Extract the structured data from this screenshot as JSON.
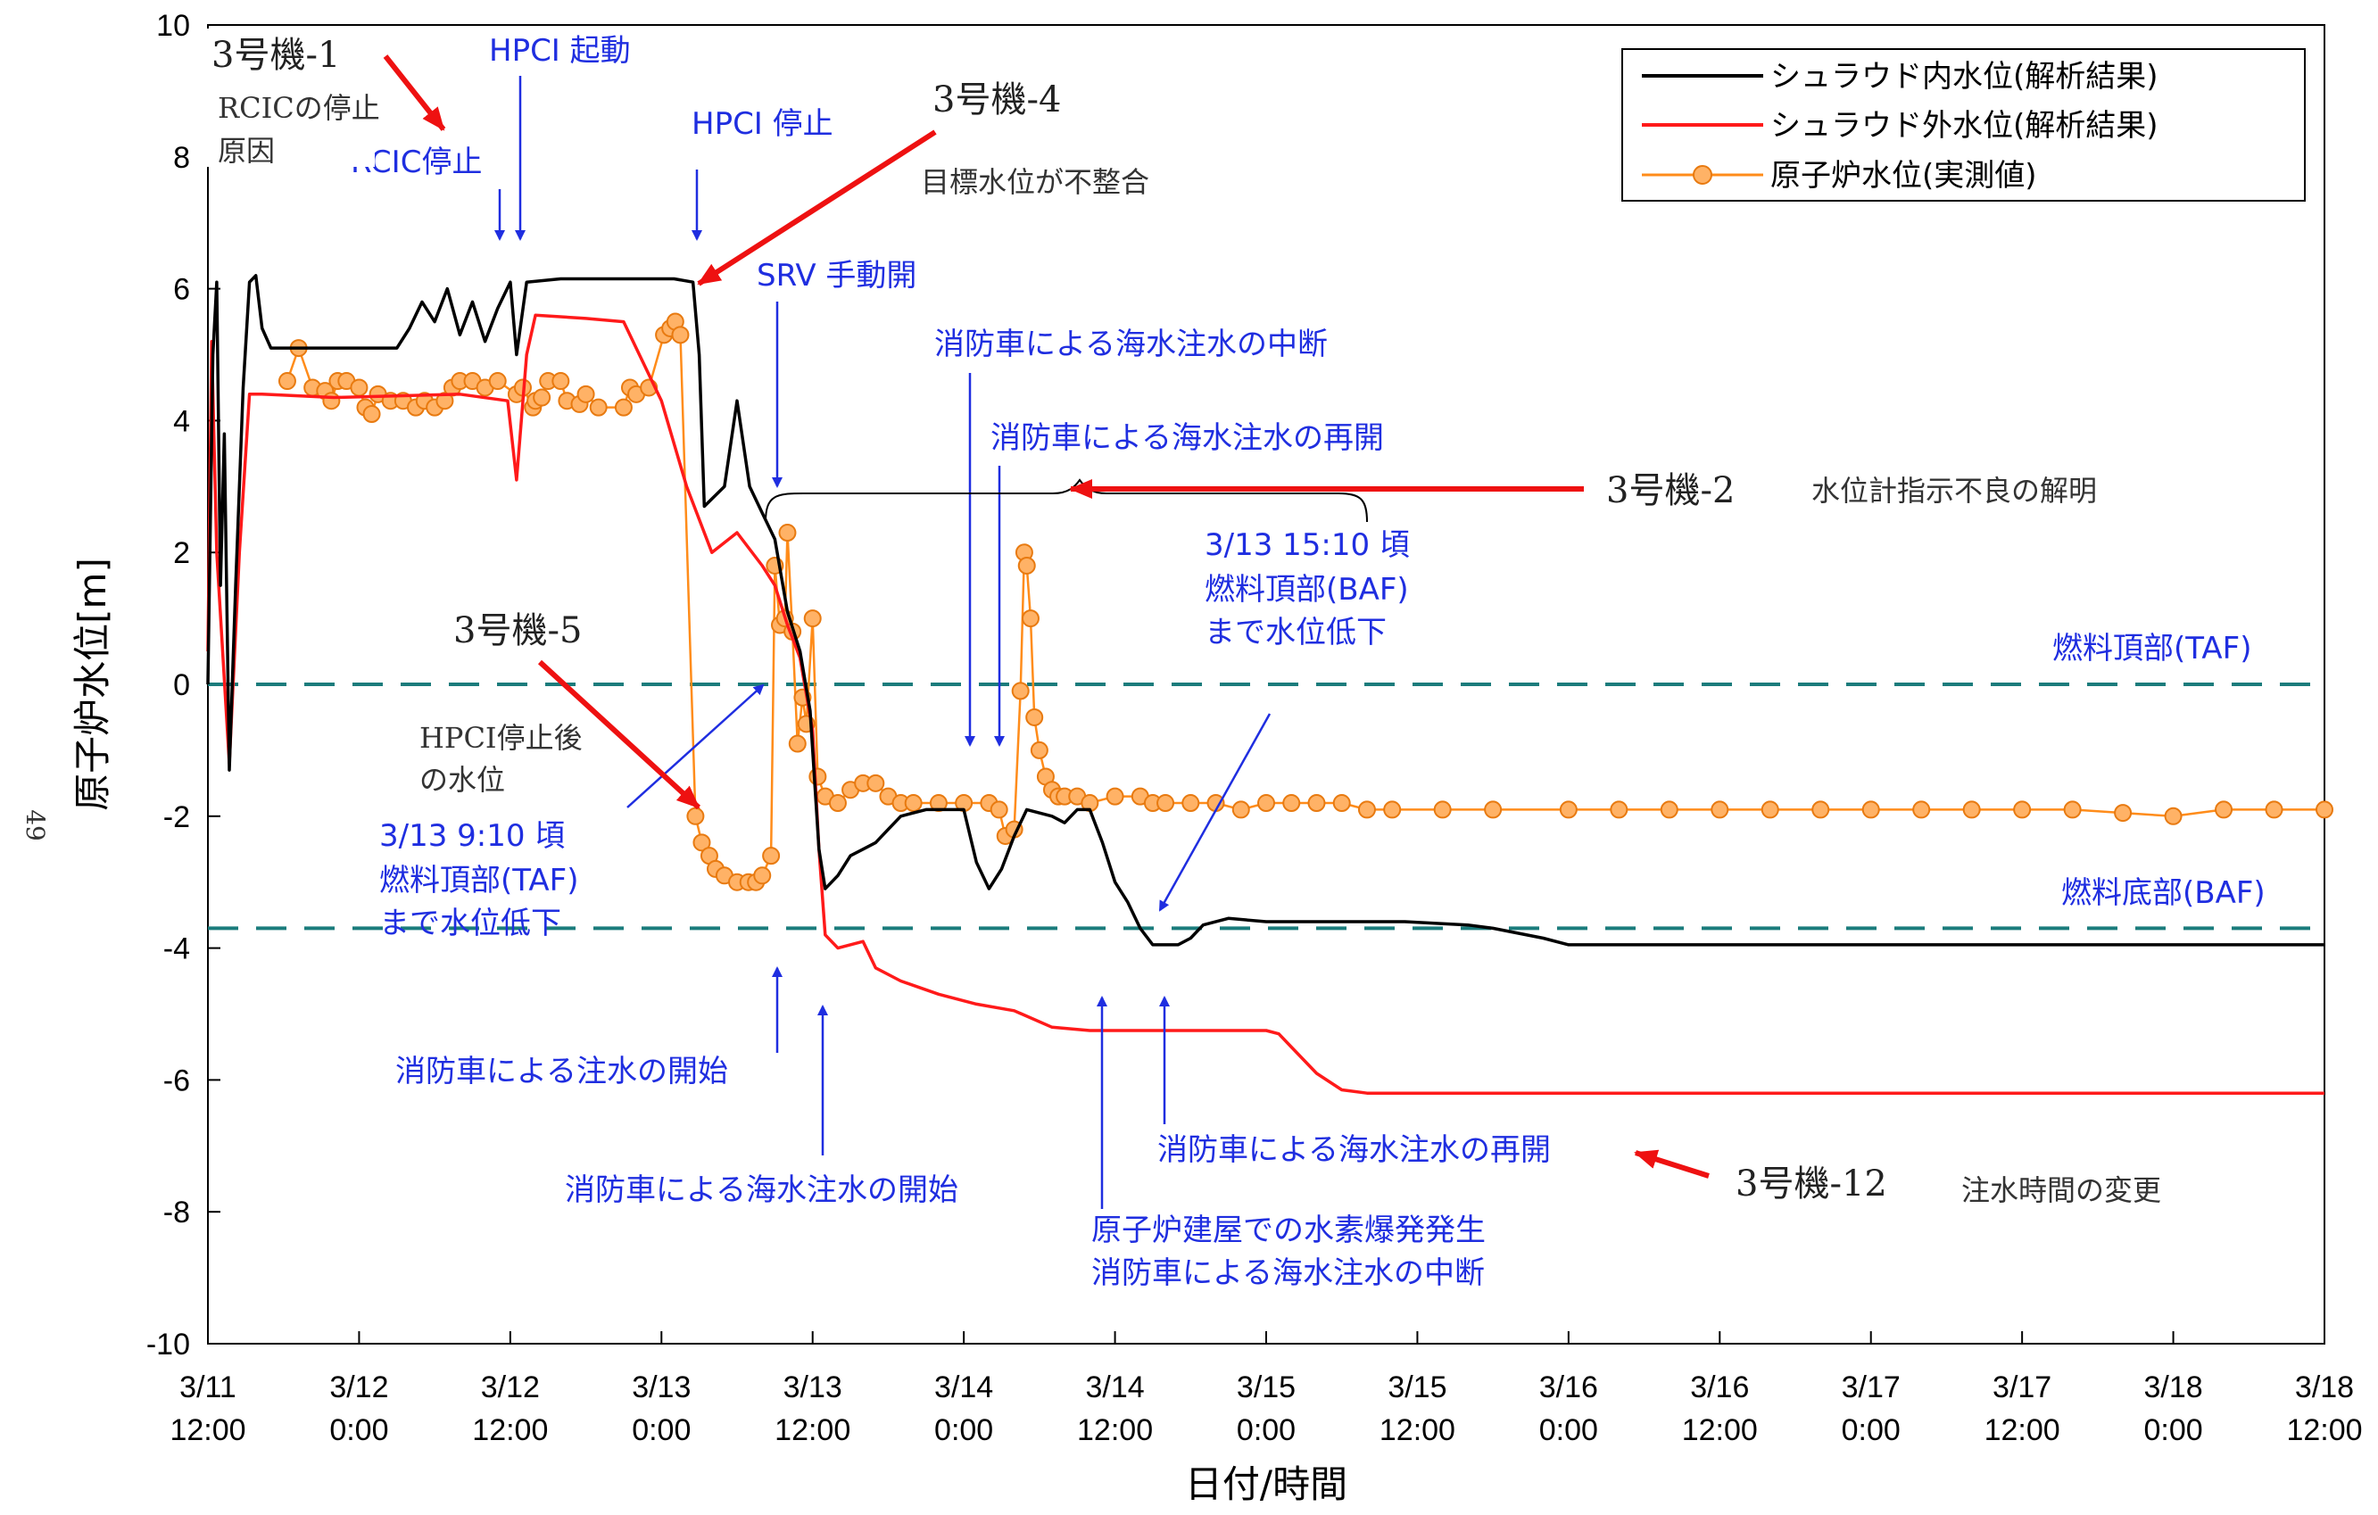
{
  "chart_data": {
    "type": "line",
    "title": "",
    "xlabel": "日付/時間",
    "ylabel": "原子炉水位[m]",
    "ylim": [
      -10,
      10
    ],
    "xlim": [
      0,
      168
    ],
    "grid": false,
    "legend_position": "top-right",
    "page_number": "49",
    "x_ticks": [
      {
        "t": 0,
        "line1": "3/11",
        "line2": "12:00"
      },
      {
        "t": 12,
        "line1": "3/12",
        "line2": "0:00"
      },
      {
        "t": 24,
        "line1": "3/12",
        "line2": "12:00"
      },
      {
        "t": 36,
        "line1": "3/13",
        "line2": "0:00"
      },
      {
        "t": 48,
        "line1": "3/13",
        "line2": "12:00"
      },
      {
        "t": 60,
        "line1": "3/14",
        "line2": "0:00"
      },
      {
        "t": 72,
        "line1": "3/14",
        "line2": "12:00"
      },
      {
        "t": 84,
        "line1": "3/15",
        "line2": "0:00"
      },
      {
        "t": 96,
        "line1": "3/15",
        "line2": "12:00"
      },
      {
        "t": 108,
        "line1": "3/16",
        "line2": "0:00"
      },
      {
        "t": 120,
        "line1": "3/16",
        "line2": "12:00"
      },
      {
        "t": 132,
        "line1": "3/17",
        "line2": "0:00"
      },
      {
        "t": 144,
        "line1": "3/17",
        "line2": "12:00"
      },
      {
        "t": 156,
        "line1": "3/18",
        "line2": "0:00"
      },
      {
        "t": 168,
        "line1": "3/18",
        "line2": "12:00"
      }
    ],
    "y_ticks": [
      10,
      8,
      6,
      4,
      2,
      0,
      -2,
      -4,
      -6,
      -8,
      -10
    ],
    "reference_lines": [
      {
        "y": 0,
        "label": "燃料頂部(TAF)",
        "color": "#1b7c7c"
      },
      {
        "y": -3.7,
        "label": "燃料底部(BAF)",
        "color": "#1b7c7c"
      }
    ],
    "series": [
      {
        "name": "シュラウド内水位(解析結果)",
        "color": "#000000",
        "style": "line",
        "points": [
          [
            0,
            0
          ],
          [
            0.4,
            5
          ],
          [
            0.7,
            6.1
          ],
          [
            1.0,
            1.5
          ],
          [
            1.3,
            3.8
          ],
          [
            1.7,
            -1.3
          ],
          [
            2.2,
            1.5
          ],
          [
            2.8,
            4.5
          ],
          [
            3.3,
            6.1
          ],
          [
            3.8,
            6.2
          ],
          [
            4.3,
            5.4
          ],
          [
            5,
            5.1
          ],
          [
            8,
            5.1
          ],
          [
            12,
            5.1
          ],
          [
            15,
            5.1
          ],
          [
            16,
            5.4
          ],
          [
            17,
            5.8
          ],
          [
            18,
            5.5
          ],
          [
            19,
            6.0
          ],
          [
            20,
            5.3
          ],
          [
            21,
            5.8
          ],
          [
            22,
            5.2
          ],
          [
            23,
            5.7
          ],
          [
            24,
            6.1
          ],
          [
            24.5,
            5.0
          ],
          [
            25.3,
            6.1
          ],
          [
            28,
            6.15
          ],
          [
            33,
            6.15
          ],
          [
            37,
            6.15
          ],
          [
            38.5,
            6.1
          ],
          [
            39,
            5.0
          ],
          [
            39.4,
            2.7
          ],
          [
            41,
            3.0
          ],
          [
            42,
            4.3
          ],
          [
            43,
            3.0
          ],
          [
            44,
            2.6
          ],
          [
            45,
            2.2
          ],
          [
            46,
            1.1
          ],
          [
            47,
            0.5
          ],
          [
            47.8,
            -0.4
          ],
          [
            48.5,
            -2.5
          ],
          [
            49,
            -3.1
          ],
          [
            50,
            -2.9
          ],
          [
            51,
            -2.6
          ],
          [
            52,
            -2.5
          ],
          [
            53,
            -2.4
          ],
          [
            54,
            -2.2
          ],
          [
            55,
            -2.0
          ],
          [
            57,
            -1.9
          ],
          [
            60,
            -1.9
          ],
          [
            61,
            -2.7
          ],
          [
            62,
            -3.1
          ],
          [
            63,
            -2.8
          ],
          [
            64,
            -2.3
          ],
          [
            65,
            -1.9
          ],
          [
            67,
            -2.0
          ],
          [
            68,
            -2.1
          ],
          [
            69,
            -1.9
          ],
          [
            70,
            -1.9
          ],
          [
            71,
            -2.4
          ],
          [
            72,
            -3.0
          ],
          [
            73,
            -3.3
          ],
          [
            74,
            -3.7
          ],
          [
            75,
            -3.95
          ],
          [
            77,
            -3.95
          ],
          [
            78,
            -3.85
          ],
          [
            79,
            -3.65
          ],
          [
            81,
            -3.55
          ],
          [
            84,
            -3.6
          ],
          [
            95,
            -3.6
          ],
          [
            100,
            -3.65
          ],
          [
            102,
            -3.7
          ],
          [
            106,
            -3.85
          ],
          [
            108,
            -3.95
          ],
          [
            120,
            -3.95
          ],
          [
            150,
            -3.95
          ],
          [
            168,
            -3.95
          ]
        ]
      },
      {
        "name": "シュラウド外水位(解析結果)",
        "color": "#ff1a1a",
        "style": "line",
        "points": [
          [
            0,
            0.5
          ],
          [
            0.3,
            5.2
          ],
          [
            0.7,
            2.0
          ],
          [
            1.7,
            -1.2
          ],
          [
            2.5,
            2.0
          ],
          [
            3.3,
            4.4
          ],
          [
            4.3,
            4.4
          ],
          [
            10,
            4.35
          ],
          [
            20,
            4.4
          ],
          [
            23.8,
            4.3
          ],
          [
            24.5,
            3.1
          ],
          [
            25.3,
            5.0
          ],
          [
            26,
            5.6
          ],
          [
            30,
            5.55
          ],
          [
            33,
            5.5
          ],
          [
            34,
            5.1
          ],
          [
            36,
            4.3
          ],
          [
            38,
            3.0
          ],
          [
            40,
            2.0
          ],
          [
            42,
            2.3
          ],
          [
            44,
            1.8
          ],
          [
            45,
            1.5
          ],
          [
            46,
            0.9
          ],
          [
            47,
            0.4
          ],
          [
            48,
            -0.7
          ],
          [
            48.5,
            -2.5
          ],
          [
            49,
            -3.8
          ],
          [
            50,
            -4.0
          ],
          [
            52,
            -3.9
          ],
          [
            53,
            -4.3
          ],
          [
            55,
            -4.5
          ],
          [
            58,
            -4.7
          ],
          [
            61,
            -4.85
          ],
          [
            64,
            -4.95
          ],
          [
            67,
            -5.2
          ],
          [
            70,
            -5.25
          ],
          [
            84,
            -5.25
          ],
          [
            85,
            -5.3
          ],
          [
            86,
            -5.5
          ],
          [
            88,
            -5.9
          ],
          [
            90,
            -6.15
          ],
          [
            92,
            -6.2
          ],
          [
            168,
            -6.2
          ]
        ]
      },
      {
        "name": "原子炉水位(実測値)",
        "color": "#ff8c1a",
        "style": "line+marker",
        "points": [
          [
            6.3,
            4.6
          ],
          [
            7.2,
            5.1
          ],
          [
            8.3,
            4.5
          ],
          [
            9.3,
            4.45
          ],
          [
            9.8,
            4.3
          ],
          [
            10.3,
            4.6
          ],
          [
            11,
            4.6
          ],
          [
            12,
            4.5
          ],
          [
            12.5,
            4.2
          ],
          [
            13,
            4.1
          ],
          [
            13.5,
            4.4
          ],
          [
            14.5,
            4.3
          ],
          [
            15.5,
            4.3
          ],
          [
            16.5,
            4.2
          ],
          [
            17.2,
            4.3
          ],
          [
            18,
            4.2
          ],
          [
            18.8,
            4.3
          ],
          [
            19.4,
            4.5
          ],
          [
            20,
            4.6
          ],
          [
            21,
            4.6
          ],
          [
            22,
            4.5
          ],
          [
            23,
            4.6
          ],
          [
            24.5,
            4.4
          ],
          [
            25,
            4.5
          ],
          [
            25.8,
            4.2
          ],
          [
            26,
            4.3
          ],
          [
            26.5,
            4.35
          ],
          [
            27,
            4.6
          ],
          [
            28,
            4.6
          ],
          [
            28.5,
            4.3
          ],
          [
            29.5,
            4.25
          ],
          [
            30,
            4.4
          ],
          [
            31,
            4.2
          ],
          [
            33,
            4.2
          ],
          [
            33.5,
            4.5
          ],
          [
            34,
            4.4
          ],
          [
            35,
            4.5
          ],
          [
            36.2,
            5.3
          ],
          [
            36.7,
            5.4
          ],
          [
            37.1,
            5.5
          ],
          [
            37.5,
            5.3
          ],
          [
            38.7,
            -2.0
          ],
          [
            39.2,
            -2.4
          ],
          [
            39.8,
            -2.6
          ],
          [
            40.3,
            -2.8
          ],
          [
            41,
            -2.9
          ],
          [
            42,
            -3.0
          ],
          [
            42.9,
            -3.0
          ],
          [
            43.5,
            -3.0
          ],
          [
            44,
            -2.9
          ],
          [
            44.7,
            -2.6
          ],
          [
            45,
            1.8
          ],
          [
            45.4,
            0.9
          ],
          [
            45.8,
            1.0
          ],
          [
            46,
            2.3
          ],
          [
            46.4,
            0.8
          ],
          [
            46.8,
            -0.9
          ],
          [
            47.2,
            -0.2
          ],
          [
            47.5,
            -0.6
          ],
          [
            48,
            1.0
          ],
          [
            48.4,
            -1.4
          ],
          [
            49,
            -1.7
          ],
          [
            50,
            -1.8
          ],
          [
            51,
            -1.6
          ],
          [
            52,
            -1.5
          ],
          [
            53,
            -1.5
          ],
          [
            54,
            -1.7
          ],
          [
            55,
            -1.8
          ],
          [
            56,
            -1.8
          ],
          [
            58,
            -1.8
          ],
          [
            60,
            -1.8
          ],
          [
            62,
            -1.8
          ],
          [
            62.8,
            -1.9
          ],
          [
            63.3,
            -2.3
          ],
          [
            64,
            -2.2
          ],
          [
            64.5,
            -0.1
          ],
          [
            64.8,
            2.0
          ],
          [
            65,
            1.8
          ],
          [
            65.3,
            1.0
          ],
          [
            65.6,
            -0.5
          ],
          [
            66,
            -1.0
          ],
          [
            66.5,
            -1.4
          ],
          [
            67,
            -1.6
          ],
          [
            67.5,
            -1.7
          ],
          [
            68,
            -1.7
          ],
          [
            69,
            -1.7
          ],
          [
            70,
            -1.8
          ],
          [
            72,
            -1.7
          ],
          [
            74,
            -1.7
          ],
          [
            75,
            -1.8
          ],
          [
            76,
            -1.8
          ],
          [
            78,
            -1.8
          ],
          [
            80,
            -1.8
          ],
          [
            82,
            -1.9
          ],
          [
            84,
            -1.8
          ],
          [
            86,
            -1.8
          ],
          [
            88,
            -1.8
          ],
          [
            90,
            -1.8
          ],
          [
            92,
            -1.9
          ],
          [
            94,
            -1.9
          ],
          [
            98,
            -1.9
          ],
          [
            102,
            -1.9
          ],
          [
            108,
            -1.9
          ],
          [
            112,
            -1.9
          ],
          [
            116,
            -1.9
          ],
          [
            120,
            -1.9
          ],
          [
            124,
            -1.9
          ],
          [
            128,
            -1.9
          ],
          [
            132,
            -1.9
          ],
          [
            136,
            -1.9
          ],
          [
            140,
            -1.9
          ],
          [
            144,
            -1.9
          ],
          [
            148,
            -1.9
          ],
          [
            152,
            -1.95
          ],
          [
            156,
            -2.0
          ],
          [
            160,
            -1.9
          ],
          [
            164,
            -1.9
          ],
          [
            168,
            -1.9
          ]
        ]
      }
    ],
    "annotations": {
      "blue": [
        {
          "key": "hpci_start",
          "text": "HPCI 起動"
        },
        {
          "key": "rcic_stop",
          "text": "RCIC停止"
        },
        {
          "key": "hpci_stop",
          "text": "HPCI 停止"
        },
        {
          "key": "srv_open",
          "text": "SRV 手動開"
        },
        {
          "key": "sw_interrupt",
          "text": "消防車による海水注水の中断"
        },
        {
          "key": "sw_resume",
          "text": "消防車による海水注水の再開"
        },
        {
          "key": "baf_time_1",
          "text": "3/13 15:10 頃"
        },
        {
          "key": "baf_time_2",
          "text": "燃料頂部(BAF)"
        },
        {
          "key": "baf_time_3",
          "text": "まで水位低下"
        },
        {
          "key": "taf_time_1",
          "text": "3/13 9:10 頃"
        },
        {
          "key": "taf_time_2",
          "text": "燃料頂部(TAF)"
        },
        {
          "key": "taf_time_3",
          "text": "まで水位低下"
        },
        {
          "key": "fw_start",
          "text": "消防車による注水の開始"
        },
        {
          "key": "sw_start",
          "text": "消防車による海水注水の開始"
        },
        {
          "key": "sw_resume2",
          "text": "消防車による海水注水の再開"
        },
        {
          "key": "h2_explosion",
          "text": "原子炉建屋での水素爆発発生"
        },
        {
          "key": "sw_interrupt2",
          "text": "消防車による海水注水の中断"
        }
      ],
      "issues": [
        {
          "key": "u3_1",
          "text": "3号機-1"
        },
        {
          "key": "u3_1_sub1",
          "text": "RCICの停止"
        },
        {
          "key": "u3_1_sub2",
          "text": "原因"
        },
        {
          "key": "u3_4",
          "text": "3号機-4"
        },
        {
          "key": "u3_4_sub",
          "text": "目標水位が不整合"
        },
        {
          "key": "u3_2",
          "text": "3号機-2"
        },
        {
          "key": "u3_2_sub",
          "text": "水位計指示不良の解明"
        },
        {
          "key": "u3_5",
          "text": "3号機-5"
        },
        {
          "key": "u3_5_sub1",
          "text": "HPCI停止後"
        },
        {
          "key": "u3_5_sub2",
          "text": "の水位"
        },
        {
          "key": "u3_12",
          "text": "3号機-12"
        },
        {
          "key": "u3_12_sub",
          "text": "注水時間の変更"
        }
      ]
    }
  }
}
